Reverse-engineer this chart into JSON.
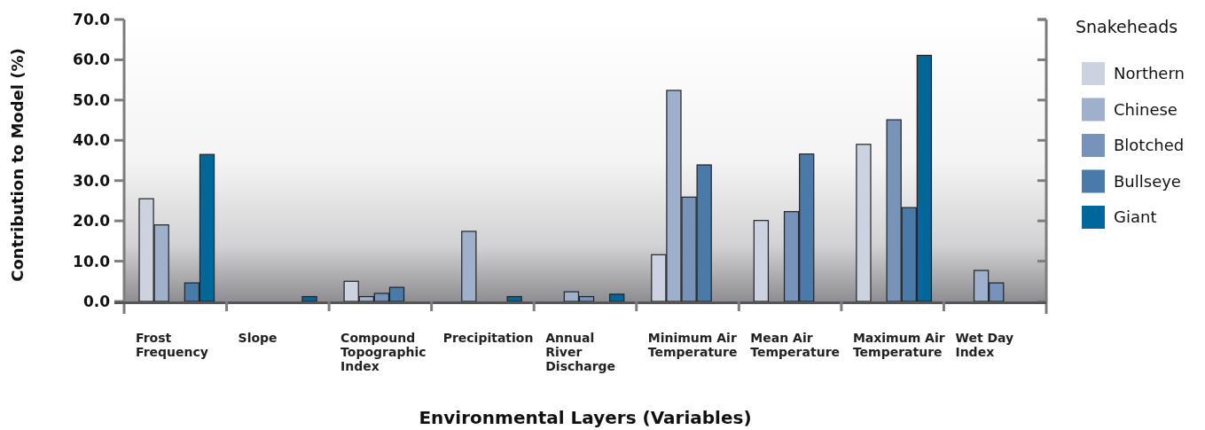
{
  "chart_data": {
    "type": "bar",
    "xlabel": "Environmental Layers (Variables)",
    "ylabel": "Contribution to Model (%)",
    "legend_title": "Snakeheads",
    "legend": "right",
    "categories": [
      "Frost Frequency",
      "Slope",
      "Compound Topographic Index",
      "Precipitation",
      "Annual River Discharge",
      "Minimum Air Temperature",
      "Mean Air Temperature",
      "Maximum Air Temperature",
      "Wet Day Index"
    ],
    "series": [
      {
        "name": "Northern",
        "color": "#cbd2e0",
        "values": [
          25.5,
          null,
          5.0,
          null,
          null,
          11.6,
          20.1,
          39.0,
          null
        ]
      },
      {
        "name": "Chinese",
        "color": "#9fb0cc",
        "values": [
          19.0,
          null,
          1.2,
          17.4,
          2.4,
          52.4,
          null,
          null,
          7.7
        ]
      },
      {
        "name": "Blotched",
        "color": "#7893b9",
        "values": [
          null,
          null,
          2.0,
          null,
          1.2,
          25.9,
          22.3,
          45.1,
          4.6
        ]
      },
      {
        "name": "Bullseye",
        "color": "#4a7aa8",
        "values": [
          4.6,
          null,
          3.5,
          null,
          null,
          33.9,
          36.6,
          23.3,
          null
        ]
      },
      {
        "name": "Giant",
        "color": "#00679b",
        "values": [
          36.5,
          1.2,
          null,
          1.2,
          1.8,
          null,
          null,
          61.1,
          null
        ]
      }
    ],
    "ylim": [
      0,
      70
    ],
    "yticks": [
      {
        "value": 0,
        "label": "0.0"
      },
      {
        "value": 10,
        "label": "10.0"
      },
      {
        "value": 20,
        "label": "20.0"
      },
      {
        "value": 30,
        "label": "30.0"
      },
      {
        "value": 40,
        "label": "40.0"
      },
      {
        "value": 50,
        "label": "50.0"
      },
      {
        "value": 60,
        "label": "60.0"
      },
      {
        "value": 70,
        "label": "70.0"
      }
    ],
    "grid": false
  }
}
